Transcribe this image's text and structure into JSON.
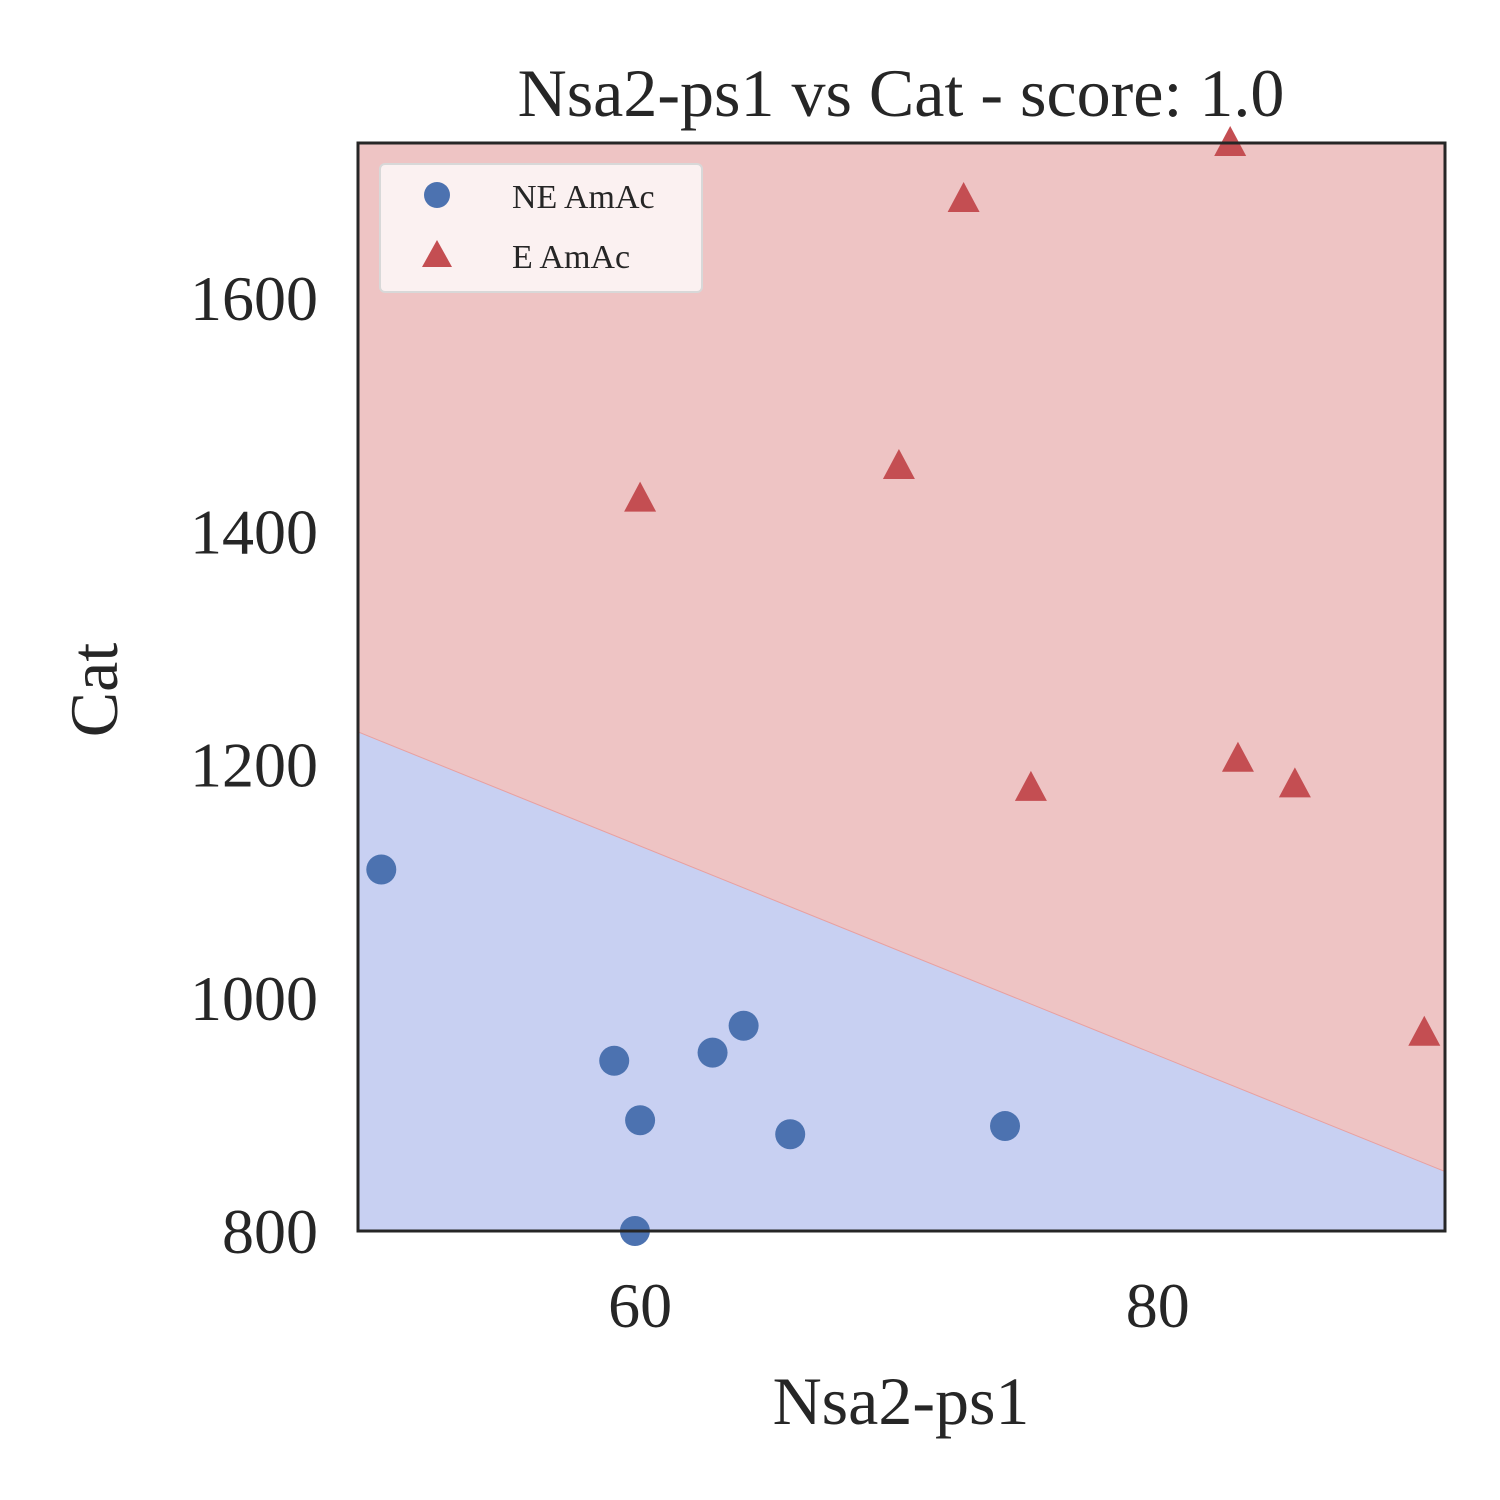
{
  "chart_data": {
    "type": "scatter",
    "title": "Nsa2-ps1 vs Cat - score: 1.0",
    "xlabel": "Nsa2-ps1",
    "ylabel": "Cat",
    "xlim": [
      49.1,
      91.1
    ],
    "ylim": [
      800,
      1733
    ],
    "xticks": [
      60,
      80
    ],
    "yticks": [
      800,
      1000,
      1200,
      1400,
      1600
    ],
    "grid": false,
    "legend_position": "top-left",
    "decision_boundary": {
      "x": [
        49.1,
        91.1
      ],
      "y": [
        1228,
        851
      ],
      "below_class": "NE AmAc",
      "above_class": "E AmAc",
      "below_color": "#c8d0f2",
      "above_color": "#eec4c4",
      "line_color": "#e8a0a0"
    },
    "series": [
      {
        "name": "NE AmAc",
        "marker": "circle",
        "color": "#4c72b0",
        "points": [
          [
            50.0,
            1110
          ],
          [
            59.0,
            946
          ],
          [
            60.0,
            895
          ],
          [
            59.8,
            800
          ],
          [
            62.8,
            953
          ],
          [
            64.0,
            976
          ],
          [
            65.8,
            883
          ],
          [
            74.1,
            890
          ]
        ]
      },
      {
        "name": "E AmAc",
        "marker": "triangle",
        "color": "#c44e52",
        "points": [
          [
            60.0,
            1428
          ],
          [
            70.0,
            1456
          ],
          [
            72.5,
            1685
          ],
          [
            75.1,
            1180
          ],
          [
            82.8,
            1733
          ],
          [
            83.1,
            1205
          ],
          [
            85.3,
            1183
          ],
          [
            90.3,
            970
          ]
        ]
      }
    ]
  }
}
